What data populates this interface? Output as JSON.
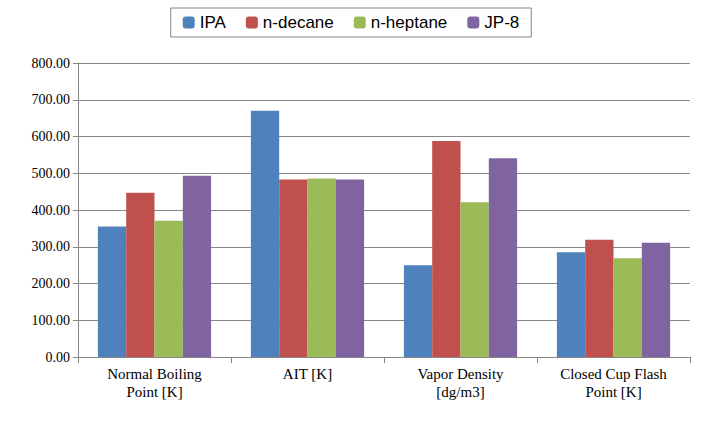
{
  "chart_data": {
    "type": "bar",
    "categories": [
      "Normal Boiling\nPoint [K]",
      "AIT [K]",
      "Vapor Density\n[dg/m3]",
      "Closed Cup Flash\nPoint [K]"
    ],
    "series": [
      {
        "name": "IPA",
        "color": "#4f81bd",
        "values": [
          355,
          670,
          250,
          285
        ]
      },
      {
        "name": "n-decane",
        "color": "#c0504d",
        "values": [
          447,
          483,
          588,
          319
        ]
      },
      {
        "name": "n-heptane",
        "color": "#9bbb59",
        "values": [
          371,
          486,
          421,
          269
        ]
      },
      {
        "name": "JP-8",
        "color": "#8064a2",
        "values": [
          493,
          483,
          541,
          311
        ]
      }
    ],
    "ylim": [
      0,
      800
    ],
    "yticks": [
      {
        "value": 0,
        "label": "0.00"
      },
      {
        "value": 100,
        "label": "100.00"
      },
      {
        "value": 200,
        "label": "200.00"
      },
      {
        "value": 300,
        "label": "300.00"
      },
      {
        "value": 400,
        "label": "400.00"
      },
      {
        "value": 500,
        "label": "500.00"
      },
      {
        "value": 600,
        "label": "600.00"
      },
      {
        "value": 700,
        "label": "700.00"
      },
      {
        "value": 800,
        "label": "800.00"
      }
    ],
    "grid": true,
    "legend": "top"
  }
}
